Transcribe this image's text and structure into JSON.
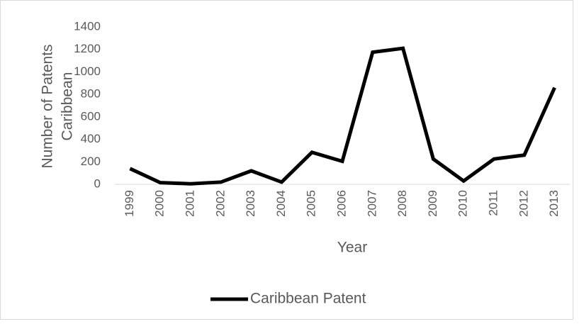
{
  "chart_data": {
    "type": "line",
    "ylabel": [
      "Number of Patents",
      "Caribbean"
    ],
    "xlabel": "Year",
    "categories": [
      "1999",
      "2000",
      "2001",
      "2002",
      "2003",
      "2004",
      "2005",
      "2006",
      "2007",
      "2008",
      "2009",
      "2010",
      "2011",
      "2012",
      "2013"
    ],
    "series": [
      {
        "name": "Caribbean Patent",
        "color": "#000000",
        "values": [
          140,
          15,
          5,
          20,
          120,
          20,
          285,
          205,
          1175,
          1210,
          225,
          30,
          225,
          260,
          860
        ]
      }
    ],
    "ylim": [
      0,
      1400
    ],
    "yticks": [
      0,
      200,
      400,
      600,
      800,
      1000,
      1200,
      1400
    ],
    "grid": false,
    "legend": "bottom"
  }
}
